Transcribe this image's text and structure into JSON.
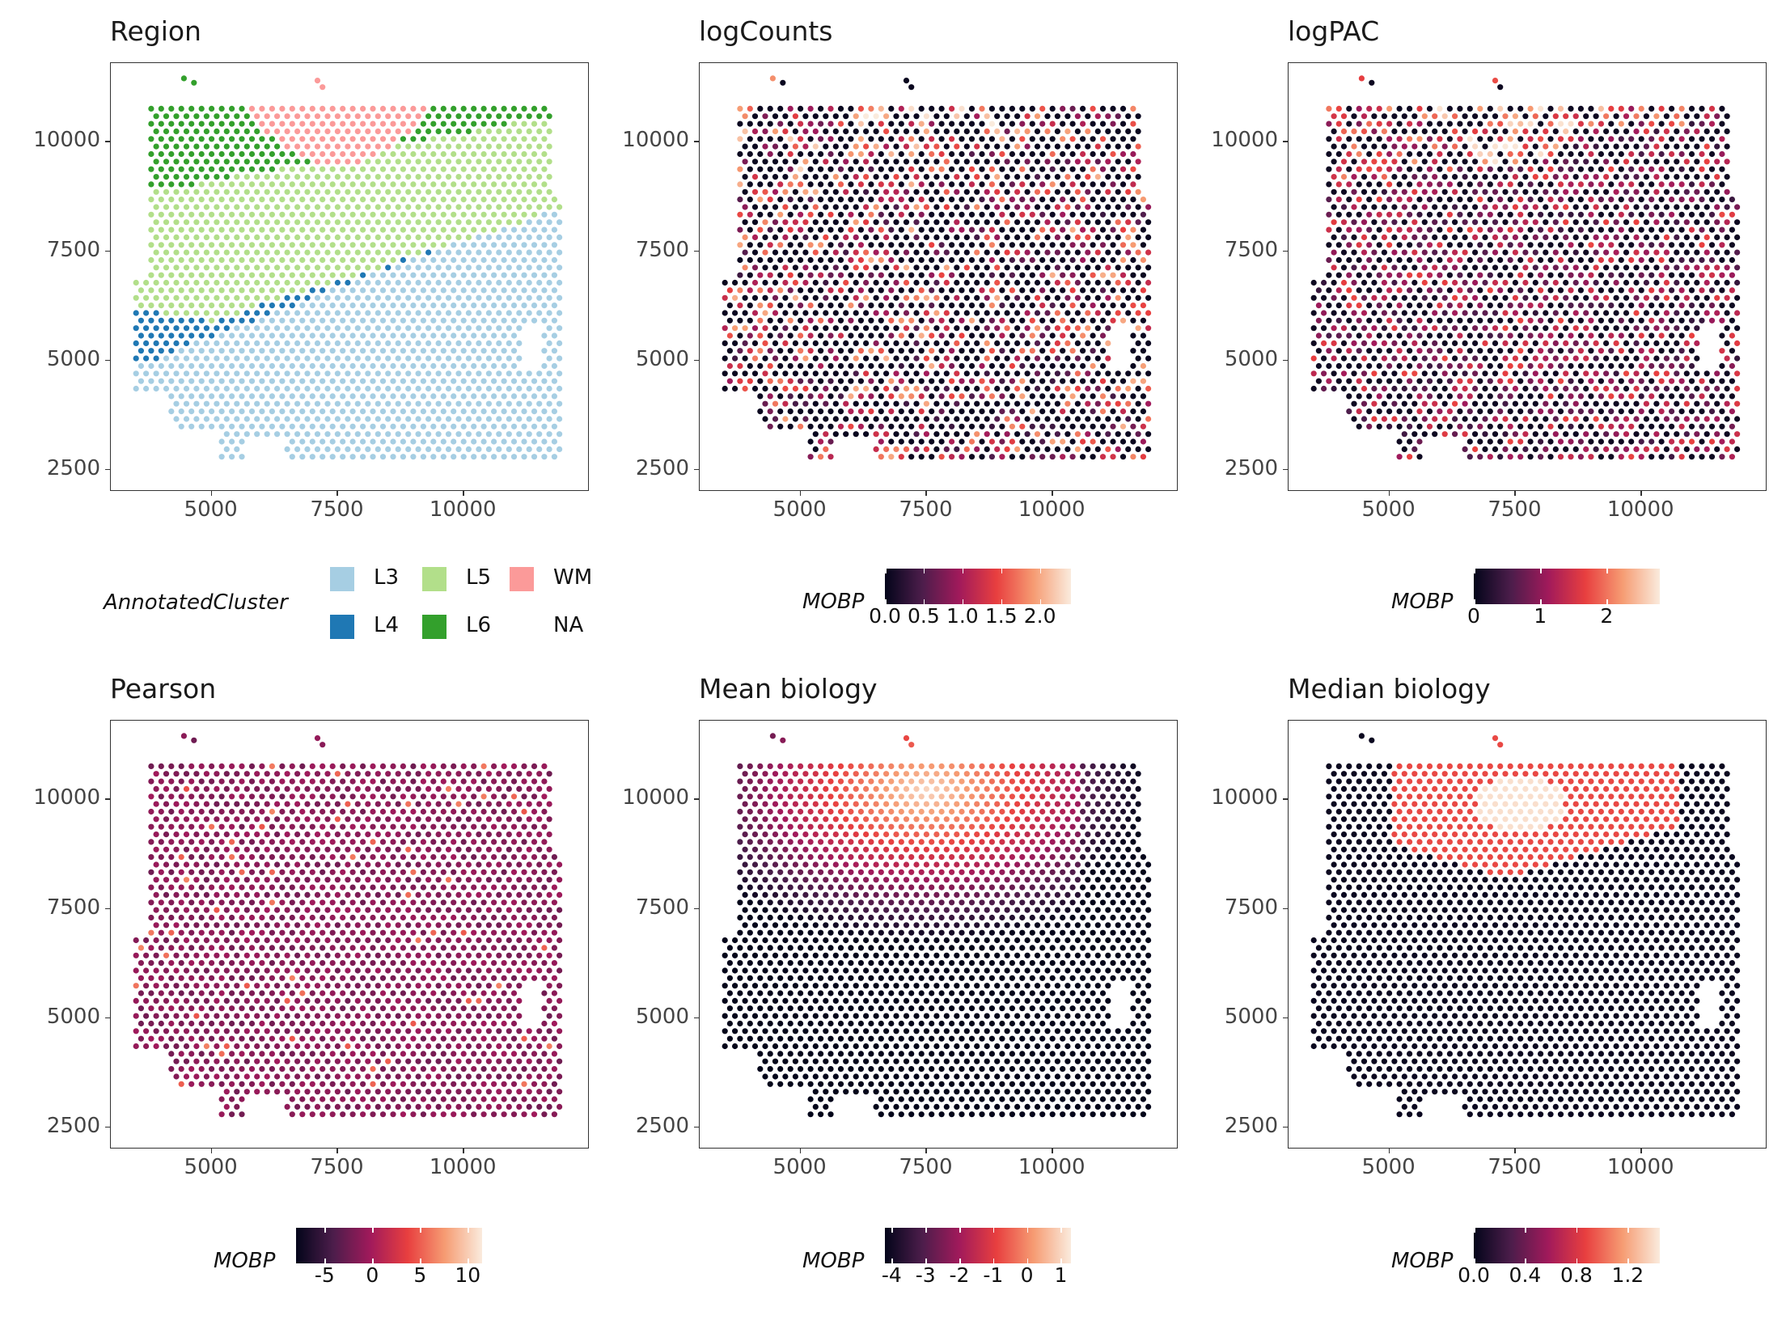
{
  "colors": {
    "L3": "#a6cee3",
    "L4": "#1f78b4",
    "L5": "#b2df8a",
    "L6": "#33a02c",
    "WM": "#fb9a99",
    "rocket": [
      "#03051a",
      "#4c1d4b",
      "#a11a5b",
      "#e83f3f",
      "#f69c73",
      "#faebdd"
    ]
  },
  "chart_data": [
    {
      "type": "scatter",
      "title": "Region",
      "legend": {
        "title": "AnnotatedCluster",
        "entries": [
          "L3",
          "L4",
          "L5",
          "L6",
          "WM",
          "NA"
        ]
      },
      "xlim": [
        3000,
        12500
      ],
      "ylim": [
        2000,
        11800
      ],
      "xticks": [
        "5000",
        "7500",
        "10000"
      ],
      "yticks": [
        "2500",
        "5000",
        "7500",
        "10000"
      ]
    },
    {
      "type": "scatter",
      "title": "logCounts",
      "colorbar": {
        "title": "MOBP",
        "range": [
          0,
          2.4
        ],
        "ticks": [
          "0.0",
          "0.5",
          "1.0",
          "1.5",
          "2.0"
        ],
        "tick_values": [
          0,
          0.5,
          1.0,
          1.5,
          2.0
        ]
      },
      "xlim": [
        3000,
        12500
      ],
      "ylim": [
        2000,
        11800
      ],
      "xticks": [
        "5000",
        "7500",
        "10000"
      ],
      "yticks": [
        "2500",
        "5000",
        "7500",
        "10000"
      ]
    },
    {
      "type": "scatter",
      "title": "logPAC",
      "colorbar": {
        "title": "MOBP",
        "range": [
          0,
          2.8
        ],
        "ticks": [
          "0",
          "1",
          "2"
        ],
        "tick_values": [
          0,
          1,
          2
        ]
      },
      "xlim": [
        3000,
        12500
      ],
      "ylim": [
        2000,
        11800
      ],
      "xticks": [
        "5000",
        "7500",
        "10000"
      ],
      "yticks": [
        "2500",
        "5000",
        "7500",
        "10000"
      ]
    },
    {
      "type": "scatter",
      "title": "Pearson",
      "colorbar": {
        "title": "MOBP",
        "range": [
          -8,
          11.5
        ],
        "ticks": [
          "-5",
          "0",
          "5",
          "10"
        ],
        "tick_values": [
          -5,
          0,
          5,
          10
        ]
      },
      "xlim": [
        3000,
        12500
      ],
      "ylim": [
        2000,
        11800
      ],
      "xticks": [
        "5000",
        "7500",
        "10000"
      ],
      "yticks": [
        "2500",
        "5000",
        "7500",
        "10000"
      ]
    },
    {
      "type": "scatter",
      "title": "Mean biology",
      "colorbar": {
        "title": "MOBP",
        "range": [
          -4.2,
          1.3
        ],
        "ticks": [
          "-4",
          "-3",
          "-2",
          "-1",
          "0",
          "1"
        ],
        "tick_values": [
          -4,
          -3,
          -2,
          -1,
          0,
          1
        ]
      },
      "xlim": [
        3000,
        12500
      ],
      "ylim": [
        2000,
        11800
      ],
      "xticks": [
        "5000",
        "7500",
        "10000"
      ],
      "yticks": [
        "2500",
        "5000",
        "7500",
        "10000"
      ]
    },
    {
      "type": "scatter",
      "title": "Median biology",
      "colorbar": {
        "title": "MOBP",
        "range": [
          0,
          1.45
        ],
        "ticks": [
          "0.0",
          "0.4",
          "0.8",
          "1.2"
        ],
        "tick_values": [
          0,
          0.4,
          0.8,
          1.2
        ]
      },
      "xlim": [
        3000,
        12500
      ],
      "ylim": [
        2000,
        11800
      ],
      "xticks": [
        "5000",
        "7500",
        "10000"
      ],
      "yticks": [
        "2500",
        "5000",
        "7500",
        "10000"
      ]
    }
  ]
}
